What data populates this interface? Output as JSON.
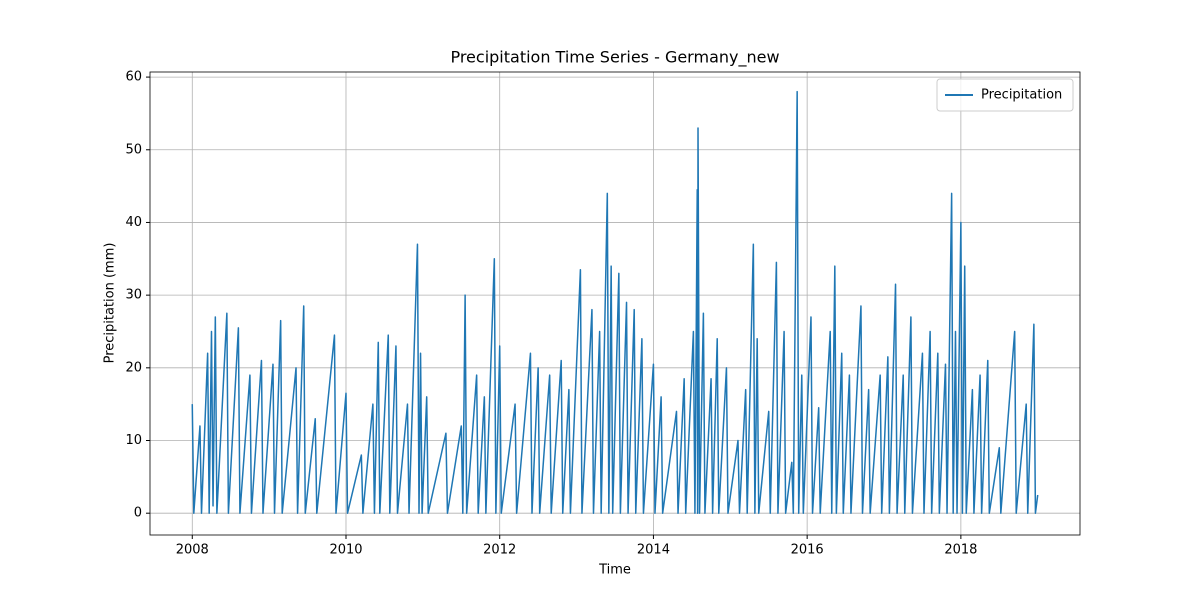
{
  "chart_data": {
    "type": "line",
    "title": "Precipitation Time Series - Germany_new",
    "xlabel": "Time",
    "ylabel": "Precipitation (mm)",
    "x": [
      2008.0,
      2008.02,
      2008.1,
      2008.12,
      2008.2,
      2008.22,
      2008.25,
      2008.27,
      2008.3,
      2008.32,
      2008.45,
      2008.47,
      2008.6,
      2008.62,
      2008.75,
      2008.77,
      2008.9,
      2008.92,
      2009.05,
      2009.07,
      2009.15,
      2009.17,
      2009.35,
      2009.37,
      2009.45,
      2009.47,
      2009.6,
      2009.62,
      2009.85,
      2009.87,
      2010.0,
      2010.02,
      2010.2,
      2010.22,
      2010.35,
      2010.37,
      2010.42,
      2010.44,
      2010.55,
      2010.57,
      2010.65,
      2010.67,
      2010.8,
      2010.82,
      2010.93,
      2010.95,
      2010.97,
      2010.99,
      2011.05,
      2011.07,
      2011.3,
      2011.32,
      2011.5,
      2011.52,
      2011.55,
      2011.57,
      2011.7,
      2011.72,
      2011.8,
      2011.82,
      2011.93,
      2011.95,
      2012.0,
      2012.02,
      2012.2,
      2012.22,
      2012.4,
      2012.42,
      2012.5,
      2012.52,
      2012.65,
      2012.67,
      2012.8,
      2012.82,
      2012.9,
      2012.92,
      2013.05,
      2013.07,
      2013.2,
      2013.22,
      2013.3,
      2013.32,
      2013.4,
      2013.42,
      2013.45,
      2013.47,
      2013.55,
      2013.57,
      2013.65,
      2013.67,
      2013.75,
      2013.77,
      2013.85,
      2013.87,
      2014.0,
      2014.02,
      2014.1,
      2014.12,
      2014.3,
      2014.32,
      2014.4,
      2014.42,
      2014.52,
      2014.54,
      2014.57,
      2014.575,
      2014.58,
      2014.6,
      2014.65,
      2014.67,
      2014.75,
      2014.77,
      2014.83,
      2014.85,
      2014.95,
      2014.97,
      2015.1,
      2015.12,
      2015.2,
      2015.22,
      2015.3,
      2015.32,
      2015.35,
      2015.37,
      2015.5,
      2015.52,
      2015.6,
      2015.62,
      2015.7,
      2015.72,
      2015.8,
      2015.82,
      2015.87,
      2015.89,
      2015.93,
      2015.95,
      2016.05,
      2016.07,
      2016.15,
      2016.17,
      2016.3,
      2016.32,
      2016.36,
      2016.38,
      2016.45,
      2016.47,
      2016.55,
      2016.57,
      2016.7,
      2016.72,
      2016.8,
      2016.82,
      2016.95,
      2016.97,
      2017.05,
      2017.07,
      2017.15,
      2017.17,
      2017.25,
      2017.27,
      2017.35,
      2017.37,
      2017.5,
      2017.52,
      2017.6,
      2017.62,
      2017.7,
      2017.72,
      2017.8,
      2017.82,
      2017.88,
      2017.9,
      2017.93,
      2017.95,
      2018.0,
      2018.02,
      2018.05,
      2018.07,
      2018.15,
      2018.17,
      2018.25,
      2018.27,
      2018.35,
      2018.37,
      2018.5,
      2018.52,
      2018.7,
      2018.72,
      2018.85,
      2018.87,
      2018.95,
      2018.97,
      2019.0
    ],
    "series": [
      {
        "name": "Precipitation",
        "color": "#1f77b4",
        "values": [
          15,
          0,
          12,
          0,
          22,
          0,
          25,
          1,
          27,
          0,
          27.5,
          0,
          25.5,
          0,
          19,
          0,
          21,
          0,
          20.5,
          0,
          26.5,
          0,
          20,
          0,
          28.5,
          0,
          13,
          0,
          24.5,
          0,
          16.5,
          0,
          8,
          0,
          15,
          0,
          23.5,
          0,
          24.5,
          0,
          23,
          0,
          15,
          0,
          37,
          0,
          22,
          0,
          16,
          0,
          11,
          0,
          12,
          0,
          30,
          0,
          19,
          0,
          16,
          0,
          35,
          0,
          23,
          0,
          15,
          0,
          22,
          0,
          20,
          0,
          19,
          0,
          21,
          0,
          17,
          0,
          33.5,
          0,
          28,
          0,
          25,
          0,
          44,
          0,
          34,
          0,
          33,
          0,
          29,
          0,
          28,
          0,
          24,
          0,
          20.5,
          0,
          16,
          0,
          14,
          0,
          18.5,
          0,
          25,
          0,
          44.5,
          0,
          53,
          0,
          27.5,
          0,
          18.5,
          0,
          24,
          0,
          20,
          0,
          10,
          0,
          17,
          0,
          37,
          0,
          24,
          0,
          14,
          0,
          34.5,
          0,
          25,
          0,
          7,
          0,
          58,
          0,
          19,
          0,
          27,
          0,
          14.5,
          0,
          25,
          0,
          34,
          0,
          22,
          0,
          19,
          0,
          28.5,
          0,
          17,
          0,
          19,
          0,
          21.5,
          0,
          31.5,
          0,
          19,
          0,
          27,
          0,
          22,
          0,
          25,
          0,
          22,
          0,
          20.5,
          0,
          44,
          0,
          25,
          0,
          40,
          0,
          34,
          0,
          17,
          0,
          19,
          0,
          21,
          0,
          9,
          0,
          25,
          0,
          15,
          0,
          26,
          0,
          2.5
        ]
      }
    ],
    "xlim": [
      2007.45,
      2019.55
    ],
    "xticks": [
      2008,
      2010,
      2012,
      2014,
      2016,
      2018
    ],
    "ylim": [
      -3.0,
      60.7
    ],
    "yticks": [
      0,
      10,
      20,
      30,
      40,
      50,
      60
    ],
    "grid": true,
    "legend": "upper right"
  }
}
